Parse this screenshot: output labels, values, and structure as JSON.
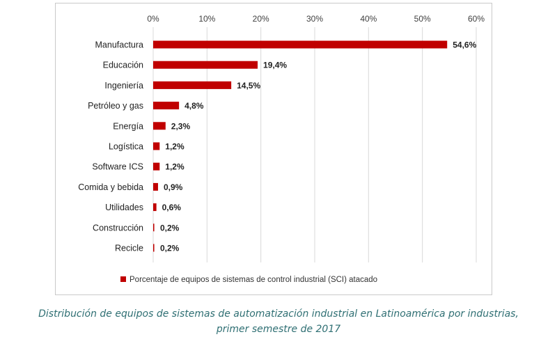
{
  "chart_data": {
    "type": "bar",
    "orientation": "horizontal",
    "categories": [
      "Manufactura",
      "Educación",
      "Ingeniería",
      "Petróleo y gas",
      "Energía",
      "Logística",
      "Software ICS",
      "Comida y bebida",
      "Utilidades",
      "Construcción",
      "Recicle"
    ],
    "values": [
      54.6,
      19.4,
      14.5,
      4.8,
      2.3,
      1.2,
      1.2,
      0.9,
      0.6,
      0.2,
      0.2
    ],
    "data_labels": [
      "54,6%",
      "19,4%",
      "14,5%",
      "4,8%",
      "2,3%",
      "1,2%",
      "1,2%",
      "0,9%",
      "0,6%",
      "0,2%",
      "0,2%"
    ],
    "x_ticks": [
      0,
      10,
      20,
      30,
      40,
      50,
      60
    ],
    "x_tick_labels": [
      "0%",
      "10%",
      "20%",
      "30%",
      "40%",
      "50%",
      "60%"
    ],
    "xlim": [
      0,
      60
    ],
    "axis_position": "top",
    "grid": true,
    "legend": {
      "position": "bottom",
      "entries": [
        "Porcentaje de equipos de sistemas de control industrial (SCI) atacado"
      ]
    },
    "colors": {
      "bar": "#c00000",
      "grid": "#d9d9d9"
    }
  },
  "caption": {
    "line1": "Distribución de equipos de sistemas de automatización industrial en Latinoamérica por industrias,",
    "line2": "primer semestre de 2017"
  }
}
